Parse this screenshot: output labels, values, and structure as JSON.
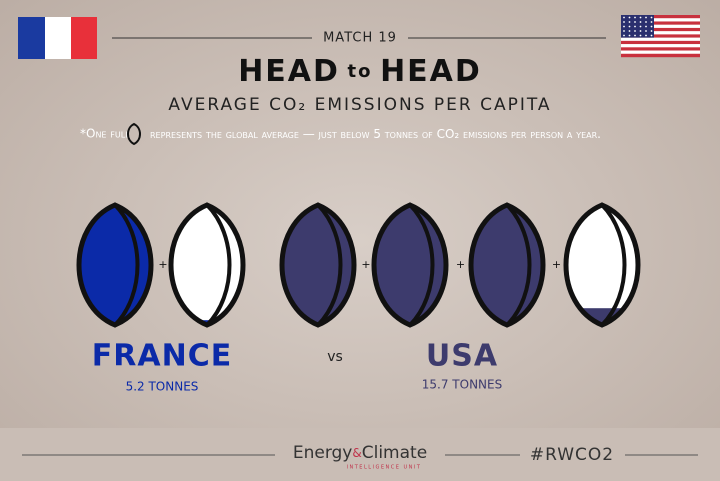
{
  "header": {
    "match": "MATCH 19",
    "title_parts": [
      "HEAD",
      "to",
      "HEAD"
    ],
    "subtitle": "AVERAGE CO₂ EMISSIONS PER CAPITA",
    "note": {
      "prefix": "*One full",
      "middle": "represents the global average — just below",
      "unit_value": 5,
      "suffix": "tonnes of CO₂ emissions per person a year."
    }
  },
  "teams": [
    {
      "name": "FRANCE",
      "tonnes": 5.2,
      "tonnes_label": "5.2 TONNES",
      "color": "#0b2aa8"
    },
    {
      "name": "USA",
      "tonnes": 15.7,
      "tonnes_label": "15.7 TONNES",
      "color": "#3d3b6d"
    }
  ],
  "vs": "vs",
  "footer": {
    "logo_parts": [
      "Energy",
      "&",
      "Climate"
    ],
    "logo_sub": "INTELLIGENCE UNIT",
    "hashtag": "#RWCO2"
  }
}
